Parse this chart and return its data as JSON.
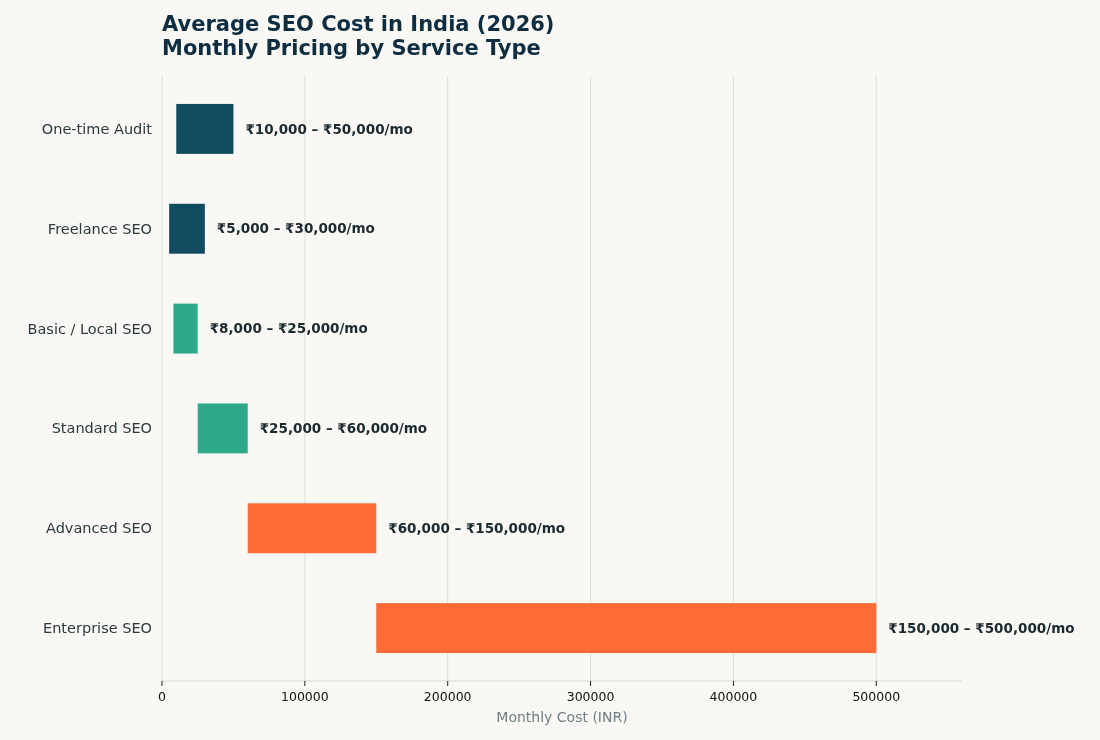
{
  "chart_data": {
    "type": "bar",
    "orientation": "horizontal",
    "title": "Average SEO Cost in India (2026)\nMonthly Pricing by Service Type",
    "xlabel": "Monthly Cost (INR)",
    "categories": [
      "One-time Audit",
      "Freelance SEO",
      "Basic / Local SEO",
      "Standard SEO",
      "Advanced SEO",
      "Enterprise SEO"
    ],
    "base": [
      10000,
      5000,
      8000,
      25000,
      60000,
      150000
    ],
    "values": [
      40000,
      25000,
      17000,
      35000,
      90000,
      350000
    ],
    "colors": [
      "#114b5f",
      "#114b5f",
      "#2ea98a",
      "#2ea98a",
      "#ff6b35",
      "#ff6b35"
    ],
    "value_labels": [
      "₹10,000 – ₹50,000/mo",
      "₹5,000 – ₹30,000/mo",
      "₹8,000 – ₹25,000/mo",
      "₹25,000 – ₹60,000/mo",
      "₹60,000 – ₹150,000/mo",
      "₹150,000 – ₹500,000/mo"
    ],
    "xlim": [
      0,
      560000
    ],
    "xticks": [
      0,
      100000,
      200000,
      300000,
      400000,
      500000
    ],
    "grid": "x"
  }
}
